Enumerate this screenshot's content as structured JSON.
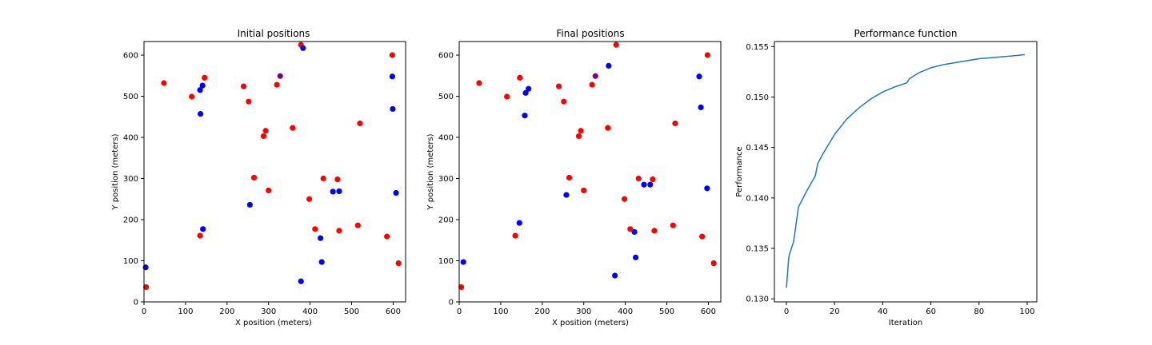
{
  "chart_data": [
    {
      "type": "scatter",
      "title": "Initial positions",
      "xlabel": "X position (meters)",
      "ylabel": "Y position (meters)",
      "xlim": [
        0,
        630
      ],
      "ylim": [
        0,
        633
      ],
      "xticks": [
        0,
        100,
        200,
        300,
        400,
        500,
        600
      ],
      "yticks": [
        0,
        100,
        200,
        300,
        400,
        500,
        600
      ],
      "grid": false,
      "series": [
        {
          "color": "#ff0000",
          "points": [
            [
              5,
              36
            ],
            [
              48,
              532
            ],
            [
              115,
              499
            ],
            [
              146,
              545
            ],
            [
              135,
              161
            ],
            [
              240,
              524
            ],
            [
              252,
              487
            ],
            [
              265,
              302
            ],
            [
              288,
              403
            ],
            [
              293,
              416
            ],
            [
              300,
              271
            ],
            [
              320,
              528
            ],
            [
              358,
              423
            ],
            [
              378,
              625
            ],
            [
              398,
              250
            ],
            [
              412,
              177
            ],
            [
              432,
              300
            ],
            [
              466,
              298
            ],
            [
              470,
              173
            ],
            [
              515,
              186
            ],
            [
              520,
              434
            ],
            [
              585,
              159
            ],
            [
              598,
              600
            ],
            [
              613,
              94
            ]
          ]
        },
        {
          "color": "#0000ff",
          "points": [
            [
              4,
              84
            ],
            [
              135,
              515
            ],
            [
              136,
              457
            ],
            [
              141,
              526
            ],
            [
              142,
              177
            ],
            [
              255,
              236
            ],
            [
              378,
              50
            ],
            [
              383,
              617
            ],
            [
              425,
              155
            ],
            [
              428,
              97
            ],
            [
              455,
              268
            ],
            [
              470,
              269
            ],
            [
              598,
              548
            ],
            [
              599,
              469
            ],
            [
              607,
              265
            ]
          ]
        },
        {
          "color": "#800080",
          "points": [
            [
              328,
              549
            ]
          ]
        }
      ]
    },
    {
      "type": "scatter",
      "title": "Final positions",
      "xlabel": "X position (meters)",
      "ylabel": "Y position (meters)",
      "xlim": [
        0,
        630
      ],
      "ylim": [
        0,
        633
      ],
      "xticks": [
        0,
        100,
        200,
        300,
        400,
        500,
        600
      ],
      "yticks": [
        0,
        100,
        200,
        300,
        400,
        500,
        600
      ],
      "grid": false,
      "series": [
        {
          "color": "#ff0000",
          "points": [
            [
              5,
              36
            ],
            [
              48,
              532
            ],
            [
              115,
              499
            ],
            [
              146,
              545
            ],
            [
              135,
              161
            ],
            [
              240,
              524
            ],
            [
              252,
              487
            ],
            [
              265,
              302
            ],
            [
              288,
              403
            ],
            [
              293,
              416
            ],
            [
              300,
              271
            ],
            [
              320,
              528
            ],
            [
              358,
              423
            ],
            [
              378,
              625
            ],
            [
              398,
              250
            ],
            [
              412,
              177
            ],
            [
              432,
              300
            ],
            [
              466,
              298
            ],
            [
              470,
              173
            ],
            [
              515,
              186
            ],
            [
              520,
              434
            ],
            [
              585,
              159
            ],
            [
              598,
              600
            ],
            [
              613,
              94
            ]
          ]
        },
        {
          "color": "#0000ff",
          "points": [
            [
              10,
              97
            ],
            [
              145,
              192
            ],
            [
              158,
              453
            ],
            [
              160,
              508
            ],
            [
              167,
              518
            ],
            [
              258,
              260
            ],
            [
              360,
              574
            ],
            [
              375,
              64
            ],
            [
              422,
              170
            ],
            [
              425,
              108
            ],
            [
              445,
              285
            ],
            [
              460,
              285
            ],
            [
              578,
              548
            ],
            [
              582,
              473
            ],
            [
              597,
              276
            ]
          ]
        },
        {
          "color": "#800080",
          "points": [
            [
              328,
              549
            ]
          ]
        }
      ]
    },
    {
      "type": "line",
      "title": "Performance function",
      "xlabel": "Iteration",
      "ylabel": "Performance",
      "xlim": [
        -5,
        104
      ],
      "ylim": [
        0.1297,
        0.1555
      ],
      "xticks": [
        0,
        20,
        40,
        60,
        80,
        100
      ],
      "yticks": [
        0.13,
        0.135,
        0.14,
        0.145,
        0.15,
        0.155
      ],
      "grid": false,
      "series": [
        {
          "color": "#1f77b4",
          "x": [
            0,
            1,
            3,
            5,
            8,
            12,
            13,
            15,
            20,
            25,
            30,
            35,
            40,
            45,
            50,
            51,
            55,
            60,
            65,
            70,
            75,
            80,
            85,
            90,
            95,
            99
          ],
          "y": [
            0.1311,
            0.1342,
            0.1357,
            0.1391,
            0.1405,
            0.1422,
            0.1434,
            0.1443,
            0.1463,
            0.1478,
            0.1489,
            0.1498,
            0.1505,
            0.151,
            0.1514,
            0.1518,
            0.1524,
            0.1529,
            0.1532,
            0.1534,
            0.1536,
            0.1538,
            0.1539,
            0.154,
            0.1541,
            0.1542
          ]
        }
      ]
    }
  ]
}
